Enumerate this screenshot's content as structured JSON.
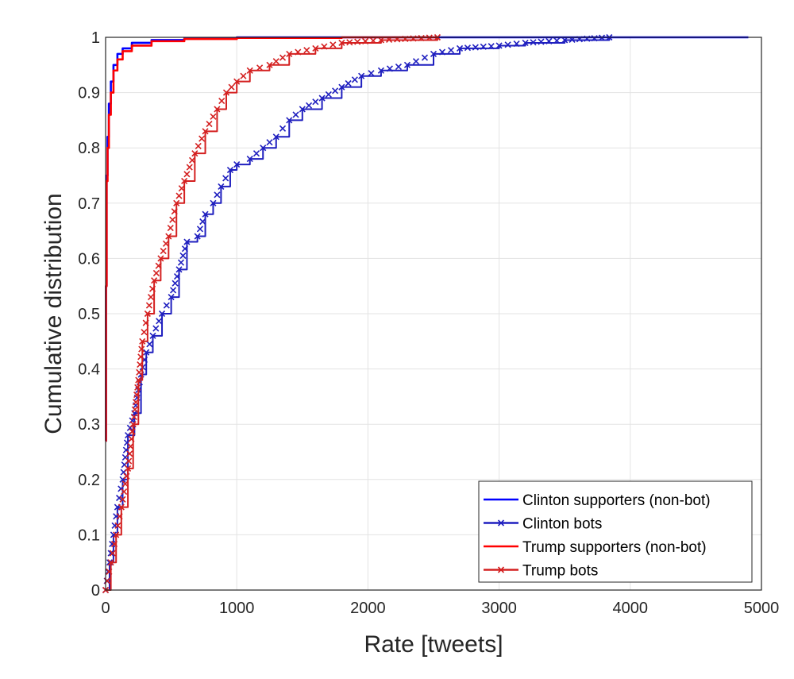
{
  "chart_data": {
    "type": "line",
    "title": "",
    "xlabel": "Rate [tweets]",
    "ylabel": "Cumulative distribution",
    "xlim": [
      0,
      5000
    ],
    "ylim": [
      0,
      1
    ],
    "x_ticks": [
      "0",
      "1000",
      "2000",
      "3000",
      "4000",
      "5000"
    ],
    "y_ticks": [
      "0",
      "0.1",
      "0.2",
      "0.3",
      "0.4",
      "0.5",
      "0.6",
      "0.7",
      "0.8",
      "0.9",
      "1"
    ],
    "grid": true,
    "legend_position": "bottom-right",
    "series": [
      {
        "name": "Clinton supporters (non-bot)",
        "color": "#0000ff",
        "marker": "none",
        "points": [
          [
            0,
            0.27
          ],
          [
            3,
            0.55
          ],
          [
            8,
            0.75
          ],
          [
            15,
            0.82
          ],
          [
            25,
            0.88
          ],
          [
            40,
            0.92
          ],
          [
            60,
            0.95
          ],
          [
            90,
            0.97
          ],
          [
            130,
            0.98
          ],
          [
            200,
            0.99
          ],
          [
            350,
            0.995
          ],
          [
            600,
            0.998
          ],
          [
            1000,
            1.0
          ],
          [
            2000,
            1.0
          ],
          [
            3000,
            1.0
          ],
          [
            4000,
            1.0
          ],
          [
            4900,
            1.0
          ]
        ]
      },
      {
        "name": "Clinton bots",
        "color": "#1f1fbf",
        "marker": "x",
        "points": [
          [
            0,
            0.0
          ],
          [
            30,
            0.05
          ],
          [
            60,
            0.1
          ],
          [
            90,
            0.15
          ],
          [
            130,
            0.2
          ],
          [
            170,
            0.28
          ],
          [
            220,
            0.32
          ],
          [
            270,
            0.39
          ],
          [
            310,
            0.43
          ],
          [
            360,
            0.46
          ],
          [
            430,
            0.5
          ],
          [
            500,
            0.53
          ],
          [
            560,
            0.58
          ],
          [
            620,
            0.63
          ],
          [
            700,
            0.64
          ],
          [
            760,
            0.68
          ],
          [
            820,
            0.7
          ],
          [
            880,
            0.73
          ],
          [
            950,
            0.76
          ],
          [
            1000,
            0.77
          ],
          [
            1100,
            0.78
          ],
          [
            1200,
            0.8
          ],
          [
            1300,
            0.82
          ],
          [
            1400,
            0.85
          ],
          [
            1500,
            0.87
          ],
          [
            1650,
            0.89
          ],
          [
            1800,
            0.91
          ],
          [
            1950,
            0.93
          ],
          [
            2100,
            0.94
          ],
          [
            2300,
            0.95
          ],
          [
            2500,
            0.97
          ],
          [
            2700,
            0.98
          ],
          [
            3000,
            0.985
          ],
          [
            3200,
            0.99
          ],
          [
            3500,
            0.995
          ],
          [
            3840,
            1.0
          ]
        ]
      },
      {
        "name": "Trump supporters (non-bot)",
        "color": "#ff0000",
        "marker": "none",
        "points": [
          [
            0,
            0.27
          ],
          [
            3,
            0.55
          ],
          [
            8,
            0.74
          ],
          [
            15,
            0.8
          ],
          [
            25,
            0.86
          ],
          [
            40,
            0.9
          ],
          [
            60,
            0.94
          ],
          [
            90,
            0.96
          ],
          [
            130,
            0.975
          ],
          [
            200,
            0.985
          ],
          [
            350,
            0.993
          ],
          [
            600,
            0.997
          ],
          [
            1000,
            0.999
          ],
          [
            1800,
            1.0
          ],
          [
            2530,
            1.0
          ]
        ]
      },
      {
        "name": "Trump bots",
        "color": "#d42020",
        "marker": "x",
        "points": [
          [
            0,
            0.0
          ],
          [
            40,
            0.05
          ],
          [
            80,
            0.1
          ],
          [
            120,
            0.15
          ],
          [
            170,
            0.22
          ],
          [
            210,
            0.3
          ],
          [
            250,
            0.38
          ],
          [
            280,
            0.45
          ],
          [
            320,
            0.5
          ],
          [
            370,
            0.56
          ],
          [
            420,
            0.6
          ],
          [
            480,
            0.64
          ],
          [
            540,
            0.7
          ],
          [
            600,
            0.74
          ],
          [
            680,
            0.79
          ],
          [
            760,
            0.83
          ],
          [
            850,
            0.87
          ],
          [
            920,
            0.9
          ],
          [
            1000,
            0.92
          ],
          [
            1100,
            0.94
          ],
          [
            1250,
            0.95
          ],
          [
            1400,
            0.97
          ],
          [
            1600,
            0.98
          ],
          [
            1800,
            0.99
          ],
          [
            2100,
            0.995
          ],
          [
            2530,
            1.0
          ]
        ]
      }
    ]
  }
}
